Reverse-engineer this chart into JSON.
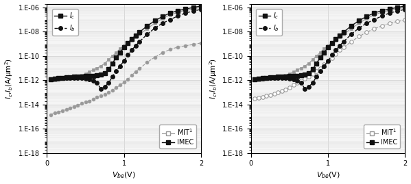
{
  "fig_width": 5.99,
  "fig_height": 2.69,
  "dpi": 100,
  "background": "#ffffff",
  "plot_bg": "#f5f5f5",
  "ylim": [
    1e-18,
    2e-06
  ],
  "xlim": [
    0,
    2
  ],
  "ylabel": "I$_c$,I$_b$(A/μm$^2$)",
  "xlabel": "V$_{be}$(V)",
  "panel1": {
    "imec_ic_x": [
      0.05,
      0.1,
      0.15,
      0.2,
      0.25,
      0.3,
      0.35,
      0.4,
      0.45,
      0.5,
      0.55,
      0.6,
      0.65,
      0.7,
      0.75,
      0.8,
      0.85,
      0.9,
      0.95,
      1.0,
      1.05,
      1.1,
      1.15,
      1.2,
      1.3,
      1.4,
      1.5,
      1.6,
      1.7,
      1.8,
      1.9,
      2.0
    ],
    "imec_ic_y": [
      1.2e-12,
      1.3e-12,
      1.5e-12,
      1.6e-12,
      1.7e-12,
      1.8e-12,
      1.9e-12,
      2e-12,
      2.1e-12,
      2.2e-12,
      2.3e-12,
      2.4e-12,
      2.6e-12,
      3e-12,
      4e-12,
      8e-12,
      2.5e-11,
      8e-11,
      2e-10,
      5e-10,
      1.2e-09,
      2.5e-09,
      5e-09,
      9e-09,
      3e-08,
      8e-08,
      1.8e-07,
      3.5e-07,
      5.5e-07,
      7.5e-07,
      1e-06,
      1.3e-06
    ],
    "imec_ib_x": [
      0.05,
      0.1,
      0.15,
      0.2,
      0.25,
      0.3,
      0.35,
      0.4,
      0.45,
      0.5,
      0.55,
      0.6,
      0.65,
      0.7,
      0.75,
      0.8,
      0.85,
      0.9,
      0.95,
      1.0,
      1.05,
      1.1,
      1.15,
      1.2,
      1.3,
      1.4,
      1.5,
      1.6,
      1.7,
      1.8,
      1.9,
      2.0
    ],
    "imec_ib_y": [
      1.2e-12,
      1.3e-12,
      1.4e-12,
      1.5e-12,
      1.5e-12,
      1.5e-12,
      1.5e-12,
      1.5e-12,
      1.5e-12,
      1.4e-12,
      1.2e-12,
      9e-13,
      6e-13,
      2e-13,
      3e-13,
      6e-13,
      2e-12,
      6e-12,
      1.5e-11,
      4e-11,
      1.2e-10,
      3e-10,
      7e-10,
      1.5e-09,
      6e-09,
      2e-08,
      5e-08,
      1e-07,
      2e-07,
      3.5e-07,
      5e-07,
      7e-07
    ],
    "mit_ic_x": [
      0.05,
      0.1,
      0.15,
      0.2,
      0.25,
      0.3,
      0.35,
      0.4,
      0.45,
      0.5,
      0.55,
      0.6,
      0.65,
      0.7,
      0.75,
      0.8,
      0.85,
      0.9,
      0.95,
      1.0,
      1.05,
      1.1,
      1.15,
      1.2,
      1.3,
      1.4,
      1.5,
      1.6,
      1.7,
      1.8,
      1.9,
      2.0
    ],
    "mit_ic_y": [
      1e-12,
      1.1e-12,
      1.2e-12,
      1.3e-12,
      1.4e-12,
      1.5e-12,
      1.7e-12,
      2e-12,
      2.5e-12,
      3.5e-12,
      5e-12,
      7e-12,
      1e-11,
      1.5e-11,
      2.5e-11,
      5e-11,
      1e-10,
      2e-10,
      4e-10,
      7e-10,
      1.2e-09,
      2e-09,
      3.5e-09,
      6e-09,
      1.8e-08,
      5e-08,
      1.2e-07,
      2.5e-07,
      4e-07,
      6e-07,
      8e-07,
      1e-06
    ],
    "mit_ib_x": [
      0.05,
      0.1,
      0.15,
      0.2,
      0.25,
      0.3,
      0.35,
      0.4,
      0.45,
      0.5,
      0.55,
      0.6,
      0.65,
      0.7,
      0.75,
      0.8,
      0.85,
      0.9,
      0.95,
      1.0,
      1.05,
      1.1,
      1.15,
      1.2,
      1.3,
      1.4,
      1.5,
      1.6,
      1.7,
      1.8,
      1.9,
      2.0
    ],
    "mit_ib_y": [
      1.5e-15,
      2e-15,
      2.5e-15,
      3e-15,
      4e-15,
      5e-15,
      7e-15,
      9e-15,
      1.2e-14,
      1.6e-14,
      2e-14,
      2.8e-14,
      4e-14,
      5e-14,
      7e-14,
      1e-13,
      1.5e-13,
      2.5e-13,
      4e-13,
      7e-13,
      1.2e-12,
      2.5e-12,
      5e-12,
      9e-12,
      3e-11,
      8e-11,
      1.8e-10,
      3.5e-10,
      5.5e-10,
      7e-10,
      9e-10,
      1.2e-09
    ]
  },
  "panel2": {
    "imec_ic_x": [
      0.05,
      0.1,
      0.15,
      0.2,
      0.25,
      0.3,
      0.35,
      0.4,
      0.45,
      0.5,
      0.55,
      0.6,
      0.65,
      0.7,
      0.75,
      0.8,
      0.85,
      0.9,
      0.95,
      1.0,
      1.05,
      1.1,
      1.15,
      1.2,
      1.3,
      1.4,
      1.5,
      1.6,
      1.7,
      1.8,
      1.9,
      2.0
    ],
    "imec_ic_y": [
      1.2e-12,
      1.3e-12,
      1.5e-12,
      1.6e-12,
      1.7e-12,
      1.8e-12,
      1.9e-12,
      2e-12,
      2.1e-12,
      2.2e-12,
      2.3e-12,
      2.4e-12,
      2.6e-12,
      3e-12,
      4e-12,
      8e-12,
      2.5e-11,
      8e-11,
      2e-10,
      5e-10,
      1.2e-09,
      2.5e-09,
      5e-09,
      9e-09,
      3e-08,
      8e-08,
      1.8e-07,
      3.5e-07,
      5.5e-07,
      7.5e-07,
      1e-06,
      1.3e-06
    ],
    "imec_ib_x": [
      0.05,
      0.1,
      0.15,
      0.2,
      0.25,
      0.3,
      0.35,
      0.4,
      0.45,
      0.5,
      0.55,
      0.6,
      0.65,
      0.7,
      0.75,
      0.8,
      0.85,
      0.9,
      0.95,
      1.0,
      1.05,
      1.1,
      1.15,
      1.2,
      1.3,
      1.4,
      1.5,
      1.6,
      1.7,
      1.8,
      1.9,
      2.0
    ],
    "imec_ib_y": [
      1.2e-12,
      1.3e-12,
      1.4e-12,
      1.5e-12,
      1.5e-12,
      1.5e-12,
      1.5e-12,
      1.5e-12,
      1.5e-12,
      1.4e-12,
      1.2e-12,
      9e-13,
      6e-13,
      2e-13,
      3e-13,
      6e-13,
      2e-12,
      6e-12,
      1.5e-11,
      4e-11,
      1.2e-10,
      3e-10,
      7e-10,
      1.5e-09,
      6e-09,
      2e-08,
      5e-08,
      1e-07,
      2e-07,
      3.5e-07,
      5e-07,
      7e-07
    ],
    "mit_ic_x": [
      0.05,
      0.1,
      0.15,
      0.2,
      0.25,
      0.3,
      0.35,
      0.4,
      0.45,
      0.5,
      0.55,
      0.6,
      0.65,
      0.7,
      0.75,
      0.8,
      0.85,
      0.9,
      0.95,
      1.0,
      1.05,
      1.1,
      1.15,
      1.2,
      1.3,
      1.4,
      1.5,
      1.6,
      1.7,
      1.8,
      1.9,
      2.0
    ],
    "mit_ic_y": [
      1e-12,
      1.1e-12,
      1.2e-12,
      1.3e-12,
      1.4e-12,
      1.5e-12,
      1.7e-12,
      2e-12,
      2.5e-12,
      3.5e-12,
      5e-12,
      7e-12,
      1e-11,
      1.5e-11,
      2.5e-11,
      5e-11,
      1e-10,
      2e-10,
      4e-10,
      7e-10,
      1.2e-09,
      2e-09,
      3.5e-09,
      6e-09,
      1.8e-08,
      5e-08,
      1.2e-07,
      2.5e-07,
      4e-07,
      6e-07,
      8e-07,
      1e-06
    ],
    "mit_ib_x": [
      0.05,
      0.1,
      0.15,
      0.2,
      0.25,
      0.3,
      0.35,
      0.4,
      0.45,
      0.5,
      0.55,
      0.6,
      0.65,
      0.7,
      0.75,
      0.8,
      0.85,
      0.9,
      0.95,
      1.0,
      1.05,
      1.1,
      1.15,
      1.2,
      1.3,
      1.4,
      1.5,
      1.6,
      1.7,
      1.8,
      1.9,
      2.0
    ],
    "mit_ib_y": [
      3e-14,
      3.5e-14,
      4e-14,
      5e-14,
      6e-14,
      8e-14,
      1e-13,
      1.3e-13,
      1.8e-13,
      2.5e-13,
      4e-13,
      6e-13,
      9e-13,
      1.4e-12,
      2e-12,
      3.5e-12,
      6e-12,
      1e-11,
      2e-11,
      3.5e-11,
      7e-11,
      1.5e-10,
      3e-10,
      5e-10,
      1.5e-09,
      4e-09,
      9e-09,
      1.8e-08,
      3e-08,
      5e-08,
      7e-08,
      9e-08
    ]
  },
  "colors": {
    "imec_dark": "#111111",
    "mit_gray": "#999999",
    "grid": "#cccccc"
  }
}
